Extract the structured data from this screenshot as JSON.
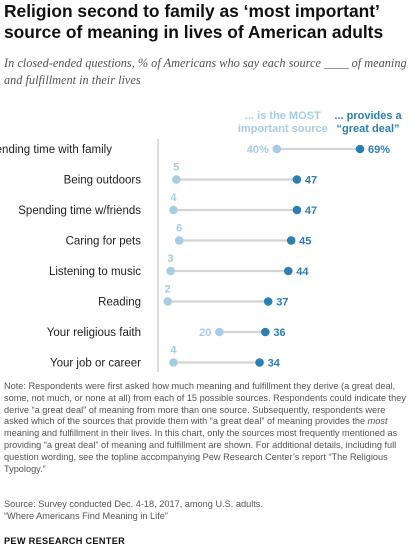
{
  "title": "Religion second to family as ‘most important’ source of meaning in lives of American adults",
  "subtitle": "In closed-ended questions, % of Americans who say each source ____ of meaning and fulfillment in their lives",
  "colors": {
    "light": "#a6cde4",
    "dark": "#2b7fb2",
    "line": "#d4d4d4",
    "label": "#222222"
  },
  "chart_data": {
    "type": "dot",
    "categories": [
      "Spending time with family",
      "Being outdoors",
      "Spending time w/friends",
      "Caring for pets",
      "Listening to music",
      "Reading",
      "Your religious faith",
      "Your job or career"
    ],
    "series": [
      {
        "name": "... is the MOST important source",
        "values": [
          40,
          5,
          4,
          6,
          3,
          2,
          20,
          4
        ]
      },
      {
        "name": "... provides a “great deal”",
        "values": [
          69,
          47,
          47,
          45,
          44,
          37,
          36,
          34
        ]
      }
    ],
    "legend_lines": [
      [
        "... is the MOST",
        "important source"
      ],
      [
        "... provides a",
        "“great deal”"
      ]
    ],
    "first_row_labels": [
      "40%",
      "69%"
    ],
    "xlim": [
      0,
      75
    ]
  },
  "notes": [
    "Note: Respondents were first asked how much meaning and fulfillment they derive (a great deal, some, not much, or none at all) from each of 15 possible sources. Respondents could indicate they derive “a great deal” of meaning from more than one source. Subsequently, respondents were asked which of the sources that provide them with “a great deal” of meaning provides the ",
    "most",
    " meaning and fulfillment in their lives. In this chart, only the sources most frequently mentioned as providing “a great deal” of meaning and fulfillment are shown. For additional details, including full question wording, see the topline accompanying Pew Research Center’s report “The Religious Typology.”"
  ],
  "source": [
    "Source: Survey conducted Dec. 4-18, 2017, among U.S. adults.",
    "“Where Americans Find Meaning in Life”"
  ],
  "org": "PEW RESEARCH CENTER"
}
